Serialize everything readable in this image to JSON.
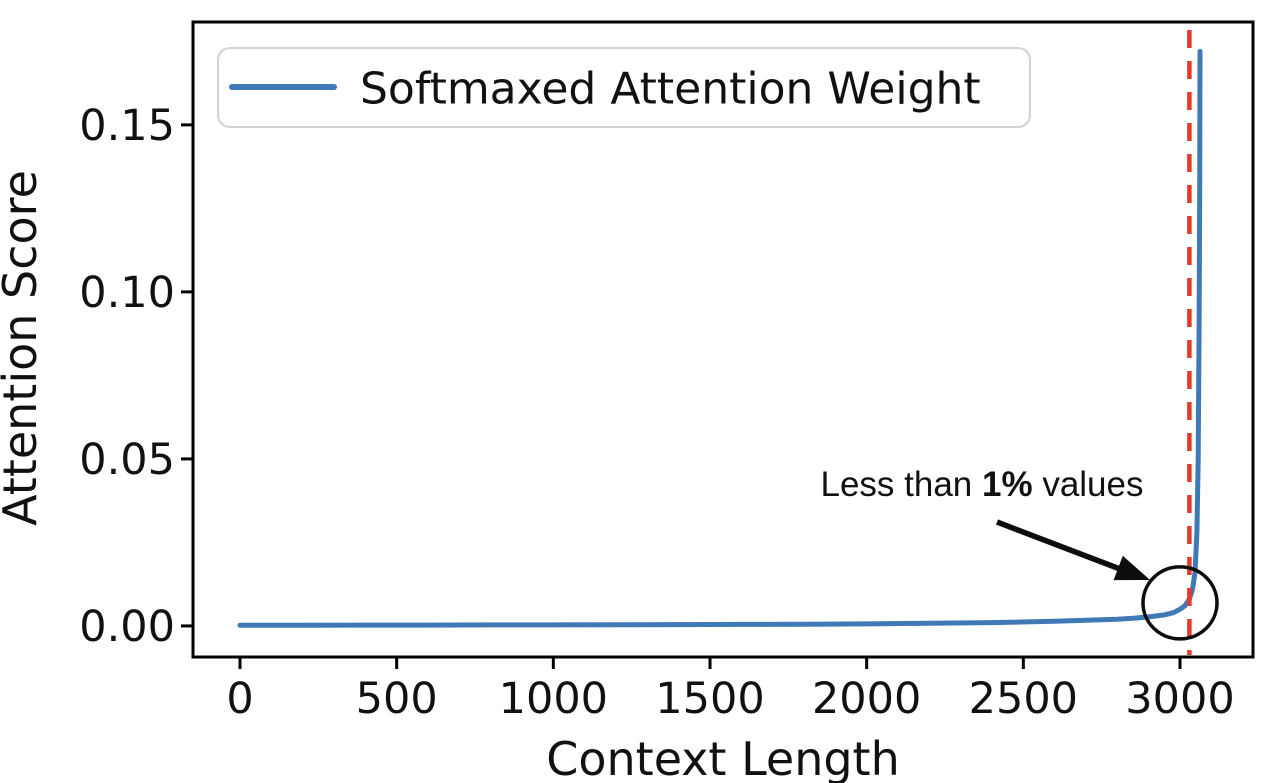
{
  "figure": {
    "xlabel": "Context Length",
    "ylabel": "Attention Score"
  },
  "legend": {
    "label": "Softmaxed Attention Weight"
  },
  "annotation": {
    "pre": "Less than ",
    "bold": "1%",
    "post": " values"
  },
  "colors": {
    "line_blue": "#3f79b6",
    "vline_red": "#e8382a",
    "axis_black": "#000000",
    "legend_border": "#d2d2d2",
    "annotation_black": "#0d0d0d"
  },
  "chart_data": {
    "type": "line",
    "title": "",
    "xlabel": "Context Length",
    "ylabel": "Attention Score",
    "xlim": [
      -150,
      3233
    ],
    "ylim": [
      -0.0093,
      0.1808
    ],
    "xticks": [
      "0",
      "500",
      "1000",
      "1500",
      "2000",
      "2500",
      "3000"
    ],
    "yticks": [
      "0.00",
      "0.05",
      "0.10",
      "0.15"
    ],
    "grid": false,
    "legend_position": "upper left",
    "series": [
      {
        "name": "Softmaxed Attention Weight",
        "color": "#3f79b6",
        "points": [
          [
            0,
            0.0002
          ],
          [
            200,
            0.0002
          ],
          [
            400,
            0.00025
          ],
          [
            600,
            0.00025
          ],
          [
            800,
            0.0003
          ],
          [
            1000,
            0.0003
          ],
          [
            1200,
            0.00035
          ],
          [
            1400,
            0.0004
          ],
          [
            1600,
            0.00045
          ],
          [
            1800,
            0.0005
          ],
          [
            2000,
            0.0006
          ],
          [
            2200,
            0.0008
          ],
          [
            2400,
            0.001
          ],
          [
            2600,
            0.0014
          ],
          [
            2700,
            0.0017
          ],
          [
            2800,
            0.002
          ],
          [
            2850,
            0.0023
          ],
          [
            2900,
            0.0027
          ],
          [
            2950,
            0.0033
          ],
          [
            2980,
            0.004
          ],
          [
            3000,
            0.005
          ],
          [
            3015,
            0.006
          ],
          [
            3030,
            0.008
          ],
          [
            3040,
            0.011
          ],
          [
            3048,
            0.016
          ],
          [
            3054,
            0.028
          ],
          [
            3058,
            0.05
          ],
          [
            3061,
            0.09
          ],
          [
            3063,
            0.13
          ],
          [
            3064,
            0.172
          ]
        ]
      }
    ],
    "vline": {
      "x": 3030,
      "color": "#e8382a",
      "style": "dashed"
    },
    "peak": {
      "x": 3064,
      "y": 0.172
    },
    "annotation": {
      "text": "Less than 1% values",
      "circled_point": {
        "x": 3000,
        "y": 0.006
      },
      "meaning": "less than 1% of context-length values lie beyond this point"
    }
  }
}
